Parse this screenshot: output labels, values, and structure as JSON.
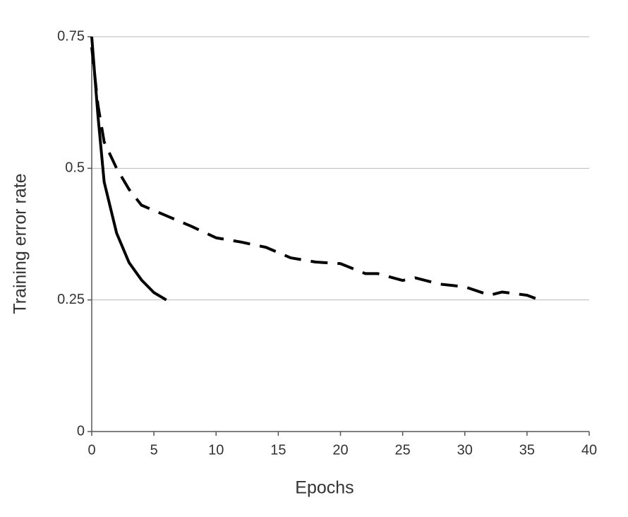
{
  "chart_data": {
    "type": "line",
    "xlabel": "Epochs",
    "ylabel": "Training error rate",
    "xlim": [
      0,
      40
    ],
    "xticks": [
      0,
      5,
      10,
      15,
      20,
      25,
      30,
      35,
      40
    ],
    "ylim": [
      0,
      0.75
    ],
    "yticks": [
      0,
      0.25,
      0.5,
      0.75
    ],
    "grid": true,
    "series": [
      {
        "color": "#000000",
        "line_style": "solid",
        "x": [
          0,
          0.5,
          1,
          2,
          3,
          4,
          5,
          6
        ],
        "values": [
          0.75,
          0.6,
          0.474,
          0.377,
          0.321,
          0.288,
          0.264,
          0.25
        ]
      },
      {
        "color": "#000000",
        "line_style": "dashed",
        "x": [
          0,
          0.5,
          1,
          2,
          3,
          4,
          5,
          6,
          7,
          8,
          10,
          12,
          14,
          16,
          18,
          20,
          22,
          23,
          25,
          26,
          28,
          30,
          32,
          33,
          35,
          36
        ],
        "values": [
          0.73,
          0.62,
          0.55,
          0.5,
          0.46,
          0.43,
          0.42,
          0.41,
          0.4,
          0.39,
          0.368,
          0.36,
          0.35,
          0.33,
          0.322,
          0.319,
          0.3,
          0.3,
          0.287,
          0.292,
          0.28,
          0.275,
          0.259,
          0.265,
          0.259,
          0.25
        ]
      }
    ]
  }
}
